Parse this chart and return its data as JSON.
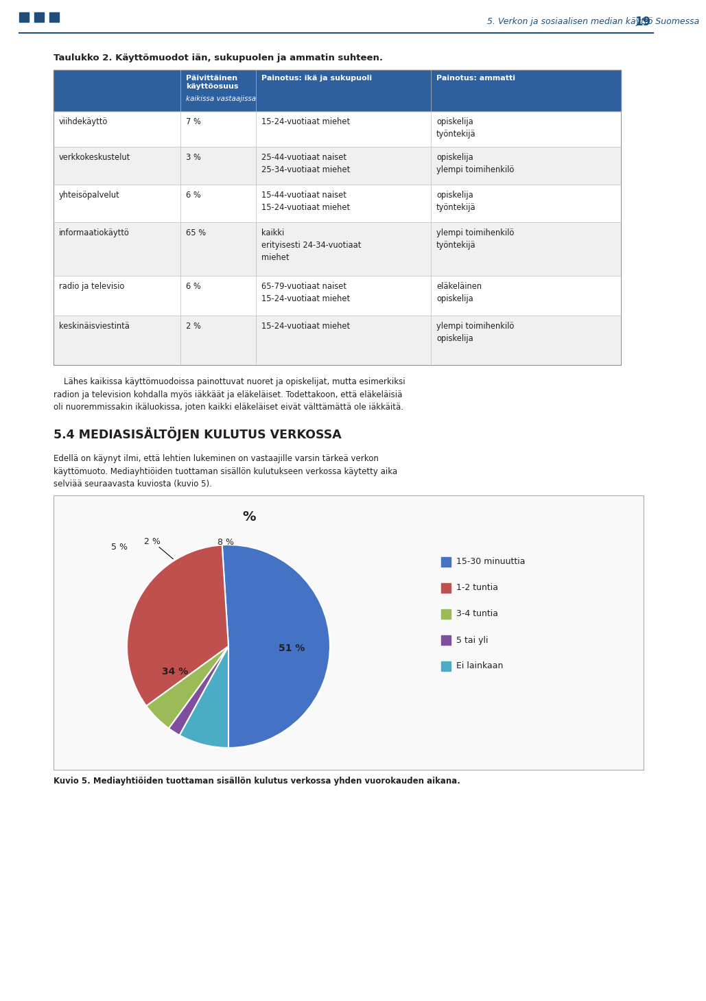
{
  "page_title": "5. Verkon ja sosiaalisen median käyttö Suomessa",
  "page_number": "19",
  "header_color": "#1f4e79",
  "header_squares": [
    "#1a3f6f",
    "#1a3f6f",
    "#1a3f6f"
  ],
  "table_title": "Taulukko 2. Käyttömuodot iän, sukupuolen ja ammatin suhteen.",
  "table_header_bg": "#2e5f9e",
  "table_rows": [
    {
      "label": "viihdekäyttö",
      "pct": "7 %",
      "ika": "15-24-vuotiaat miehet",
      "ammatti": "opiskelija\ntyöntekijä"
    },
    {
      "label": "verkkokeskustelut",
      "pct": "3 %",
      "ika": "25-44-vuotiaat naiset\n25-34-vuotiaat miehet",
      "ammatti": "opiskelija\nylempi toimihenkilö"
    },
    {
      "label": "yhteisöpalvelut",
      "pct": "6 %",
      "ika": "15-44-vuotiaat naiset\n15-24-vuotiaat miehet",
      "ammatti": "opiskelija\ntyöntekijä"
    },
    {
      "label": "informaatiokäyttö",
      "pct": "65 %",
      "ika": "kaikki\nerityisesti 24-34-vuotiaat\nmiehet",
      "ammatti": "ylempi toimihenkilö\ntyöntekijä"
    },
    {
      "label": "radio ja televisio",
      "pct": "6 %",
      "ika": "65-79-vuotiaat naiset\n15-24-vuotiaat miehet",
      "ammatti": "eläkeläinen\nopiskelija"
    },
    {
      "label": "keskinäisviestintä",
      "pct": "2 %",
      "ika": "15-24-vuotiaat miehet",
      "ammatti": "ylempi toimihenkilö\nopiskelija"
    }
  ],
  "para1": "    Lähes kaikissa käyttömuodoissa painottuvat nuoret ja opiskelijat, mutta esimerkiksi\nradion ja television kohdalla myös iäkkäät ja eläkeläiset. Todettakoon, että eläkeläisiä\noli nuoremmissakin ikäluokissa, joten kaikki eläkeläiset eivät välttämättä ole iäkkäitä.",
  "section_title": "5.4 MEDIASISÄLTÖJEN KULUTUS VERKOSSA",
  "para2": "Edellä on käynyt ilmi, että lehtien lukeminen on vastaajille varsin tärkeä verkon\nkäyttömuoto. Mediayhtiöiden tuottaman sisällön kulutukseen verkossa käytetty aika\nselviää seuraavasta kuviosta (kuvio 5).",
  "pie_title": "%",
  "pie_slices": [
    51,
    34,
    5,
    2,
    8
  ],
  "pie_colors": [
    "#4472c4",
    "#c0504d",
    "#9bbb59",
    "#7f4f9e",
    "#4bacc6"
  ],
  "pie_labels_inside": [
    "51 %",
    "34 %"
  ],
  "pie_labels_outside": [
    "5 %",
    "2 %",
    "8 %"
  ],
  "pie_legend": [
    "15-30 minuuttia",
    "1-2 tuntia",
    "3-4 tuntia",
    "5 tai yli",
    "Ei lainkaan"
  ],
  "caption": "Kuvio 5. Mediayhtiöiden tuottaman sisällön kulutus verkossa yhden vuorokauden aikana.",
  "line_color": "#1f4e79",
  "bg_color": "#ffffff",
  "text_color": "#231f20"
}
